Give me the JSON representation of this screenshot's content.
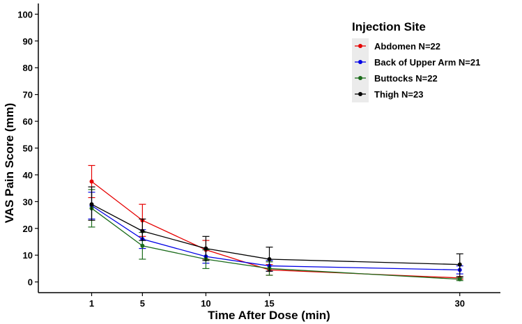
{
  "chart_data": {
    "type": "line",
    "title": "",
    "xlabel": "Time After Dose (min)",
    "ylabel": "VAS Pain Score (mm)",
    "x": [
      1,
      5,
      10,
      15,
      30
    ],
    "xlim": [
      -3.2,
      33.2
    ],
    "ylim": [
      -4,
      104
    ],
    "yticks": [
      0,
      10,
      20,
      30,
      40,
      50,
      60,
      70,
      80,
      90,
      100
    ],
    "grid": false,
    "legend": {
      "title": "Injection Site",
      "placement": "top-right"
    },
    "series": [
      {
        "name": "Abdomen N=22",
        "color": "#e60000",
        "values": [
          37.5,
          23.0,
          12.0,
          4.5,
          1.5
        ],
        "err_low": [
          31.5,
          17.0,
          8.5,
          2.5,
          1.0
        ],
        "err_high": [
          43.5,
          29.0,
          15.5,
          6.5,
          2.0
        ]
      },
      {
        "name": "Back of Upper Arm N=21",
        "color": "#0000e6",
        "values": [
          28.5,
          16.0,
          9.5,
          6.0,
          4.5
        ],
        "err_low": [
          23.5,
          12.5,
          7.0,
          4.0,
          3.0
        ],
        "err_high": [
          33.5,
          19.5,
          12.0,
          8.0,
          6.0
        ]
      },
      {
        "name": "Buttocks N=22",
        "color": "#1a6b1a",
        "values": [
          27.5,
          13.5,
          8.5,
          5.0,
          1.0
        ],
        "err_low": [
          20.5,
          8.5,
          5.0,
          2.5,
          0.5
        ],
        "err_high": [
          34.5,
          18.5,
          12.0,
          7.5,
          1.5
        ]
      },
      {
        "name": "Thigh N=23",
        "color": "#000000",
        "values": [
          29.0,
          19.0,
          12.5,
          8.5,
          6.5
        ],
        "err_low": [
          23.0,
          15.5,
          8.0,
          4.0,
          2.0
        ],
        "err_high": [
          35.5,
          23.5,
          17.0,
          13.0,
          10.5
        ]
      }
    ]
  }
}
